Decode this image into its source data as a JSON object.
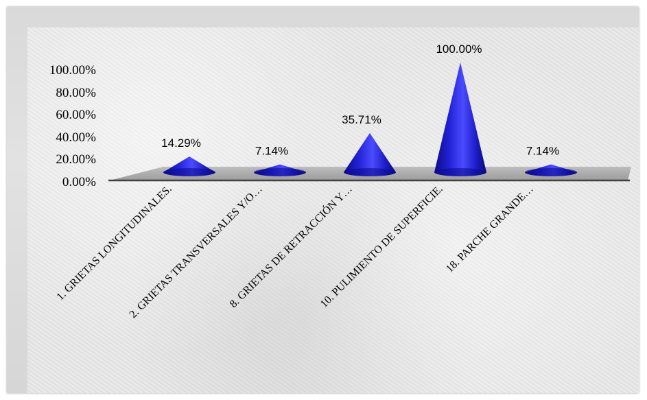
{
  "chart_data": {
    "type": "bar",
    "title": "",
    "xlabel": "",
    "ylabel": "",
    "categories": [
      "1. GRIETAS LONGITUDINALES.",
      "2. GRIETAS TRANSVERSALES Y/O…",
      "8. GRIETAS DE RETRACCIÓN Y…",
      "10. PULIMIENTO DE SUPERFICIE.",
      "18. PARCHE GRANDE…"
    ],
    "values": [
      14.29,
      7.14,
      35.71,
      100.0,
      7.14
    ],
    "value_labels": [
      "14.29%",
      "7.14%",
      "35.71%",
      "100.00%",
      "7.14%"
    ],
    "y_ticks": [
      "0.00%",
      "20.00%",
      "40.00%",
      "60.00%",
      "80.00%",
      "100.00%"
    ],
    "ylim": [
      0,
      100
    ],
    "bar_shape": "cone",
    "grid": false,
    "legend": "none",
    "colors": {
      "bar": "#1f1fe0",
      "bar_dark": "#0b0b8a",
      "bar_light": "#5a5aff",
      "floor": "#9a9a9a",
      "axis": "#404040"
    }
  }
}
